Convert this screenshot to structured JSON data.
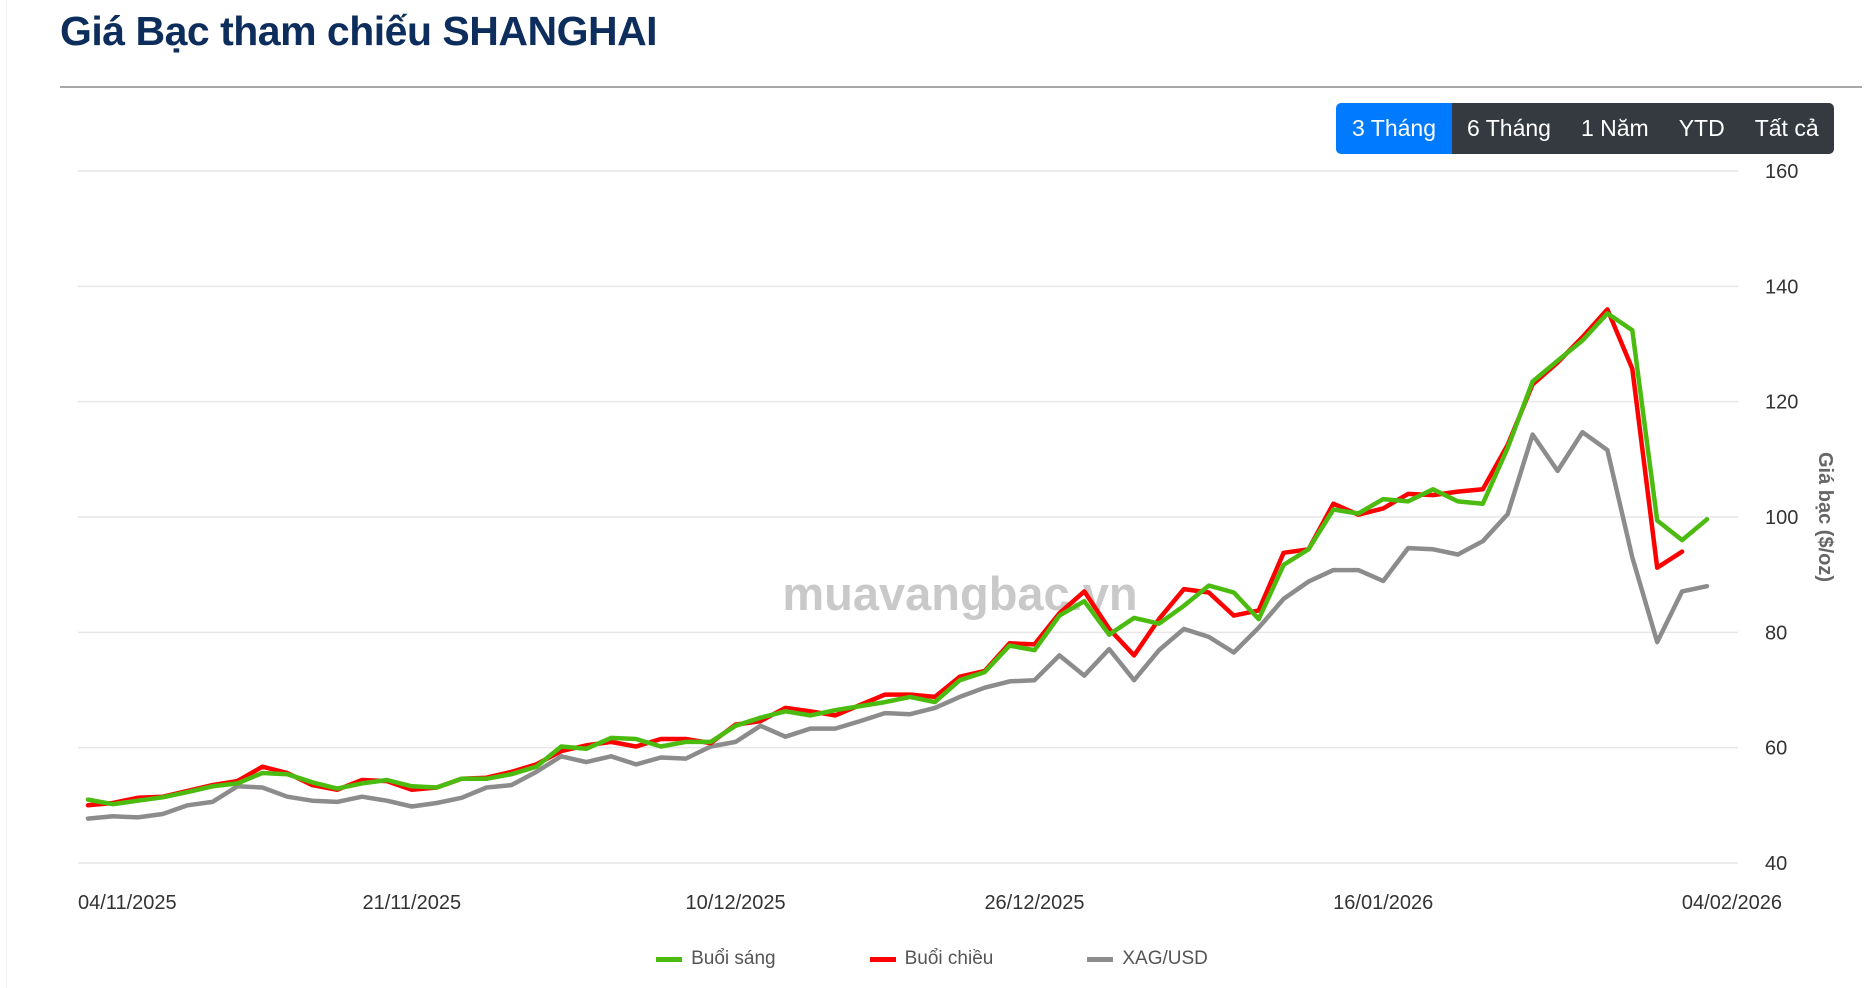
{
  "title": "Giá Bạc tham chiếu SHANGHAI",
  "range_buttons": [
    {
      "label": "3 Tháng",
      "active": true
    },
    {
      "label": "6 Tháng",
      "active": false
    },
    {
      "label": "1 Năm",
      "active": false
    },
    {
      "label": "YTD",
      "active": false
    },
    {
      "label": "Tất cả",
      "active": false
    }
  ],
  "watermark": "muavangbac.vn",
  "chart_data": {
    "type": "line",
    "ylabel": "Giá bạc ($/oz)",
    "ylim": [
      40,
      160
    ],
    "yticks": [
      40,
      60,
      80,
      100,
      120,
      140,
      160
    ],
    "y_axis_position": "right",
    "grid": true,
    "legend_position": "bottom",
    "xtick_labels": [
      "04/11/2025",
      "21/11/2025",
      "10/12/2025",
      "26/12/2025",
      "16/01/2026",
      "04/02/2026"
    ],
    "x": [
      "04/11/2025",
      "05/11/2025",
      "06/11/2025",
      "07/11/2025",
      "10/11/2025",
      "11/11/2025",
      "12/11/2025",
      "13/11/2025",
      "14/11/2025",
      "17/11/2025",
      "18/11/2025",
      "19/11/2025",
      "20/11/2025",
      "21/11/2025",
      "24/11/2025",
      "25/11/2025",
      "26/11/2025",
      "27/11/2025",
      "28/11/2025",
      "01/12/2025",
      "02/12/2025",
      "03/12/2025",
      "04/12/2025",
      "05/12/2025",
      "08/12/2025",
      "09/12/2025",
      "10/12/2025",
      "11/12/2025",
      "12/12/2025",
      "15/12/2025",
      "16/12/2025",
      "17/12/2025",
      "18/12/2025",
      "19/12/2025",
      "22/12/2025",
      "23/12/2025",
      "24/12/2025",
      "25/12/2025",
      "26/12/2025",
      "29/12/2025",
      "30/12/2025",
      "31/12/2025",
      "02/01/2026",
      "05/01/2026",
      "06/01/2026",
      "07/01/2026",
      "08/01/2026",
      "09/01/2026",
      "12/01/2026",
      "13/01/2026",
      "14/01/2026",
      "15/01/2026",
      "16/01/2026",
      "19/01/2026",
      "20/01/2026",
      "21/01/2026",
      "22/01/2026",
      "23/01/2026",
      "26/01/2026",
      "27/01/2026",
      "28/01/2026",
      "29/01/2026",
      "30/01/2026",
      "02/02/2026",
      "03/02/2026",
      "04/02/2026"
    ],
    "series": [
      {
        "name": "Buổi sáng",
        "color": "#4cbb0f",
        "values": [
          51.0,
          50.2,
          50.8,
          51.4,
          52.3,
          53.3,
          53.8,
          55.6,
          55.4,
          54.0,
          52.9,
          53.8,
          54.4,
          53.3,
          53.1,
          54.6,
          54.6,
          55.4,
          56.7,
          60.2,
          59.8,
          61.7,
          61.5,
          60.2,
          61.0,
          61.0,
          63.8,
          65.2,
          66.3,
          65.6,
          66.5,
          67.2,
          67.9,
          68.8,
          67.9,
          71.7,
          73.1,
          77.7,
          76.9,
          82.9,
          85.4,
          79.6,
          82.5,
          81.5,
          84.6,
          88.1,
          86.9,
          82.3,
          91.7,
          94.4,
          101.3,
          100.6,
          103.1,
          102.7,
          104.8,
          102.7,
          102.3,
          112.0,
          123.5,
          127.1,
          130.6,
          135.3,
          132.4,
          99.4,
          96.0,
          99.6
        ]
      },
      {
        "name": "Buổi chiều",
        "color": "#ff0000",
        "values": [
          50.0,
          50.4,
          51.3,
          51.5,
          52.5,
          53.5,
          54.2,
          56.7,
          55.6,
          53.5,
          52.7,
          54.4,
          54.2,
          52.7,
          53.1,
          54.6,
          54.8,
          55.8,
          57.1,
          59.4,
          60.4,
          61.0,
          60.2,
          61.5,
          61.5,
          60.8,
          64.0,
          64.6,
          66.9,
          66.3,
          65.6,
          67.4,
          69.2,
          69.2,
          68.8,
          72.3,
          73.3,
          78.1,
          77.9,
          83.3,
          87.1,
          80.6,
          76.0,
          82.3,
          87.5,
          86.9,
          82.9,
          83.8,
          93.8,
          94.4,
          102.3,
          100.4,
          101.5,
          104.0,
          103.8,
          104.4,
          104.8,
          112.5,
          123.0,
          126.8,
          131.2,
          136.0,
          125.7,
          91.2,
          94.0,
          null
        ]
      },
      {
        "name": "XAG/USD",
        "color": "#8c8c8c",
        "values": [
          47.7,
          48.1,
          47.9,
          48.5,
          50.0,
          50.6,
          53.3,
          53.1,
          51.5,
          50.8,
          50.6,
          51.5,
          50.8,
          49.8,
          50.4,
          51.3,
          53.1,
          53.5,
          55.8,
          58.5,
          57.5,
          58.5,
          57.1,
          58.3,
          58.1,
          60.2,
          61.0,
          63.8,
          61.9,
          63.3,
          63.3,
          64.6,
          66.0,
          65.8,
          66.9,
          68.8,
          70.4,
          71.5,
          71.7,
          76.0,
          72.5,
          77.1,
          71.7,
          76.9,
          80.6,
          79.2,
          76.5,
          80.8,
          85.8,
          88.8,
          90.8,
          90.8,
          88.9,
          94.6,
          94.4,
          93.5,
          95.8,
          100.5,
          114.3,
          108.0,
          114.7,
          111.6,
          93.0,
          78.3,
          87.1,
          88.0
        ]
      }
    ]
  }
}
